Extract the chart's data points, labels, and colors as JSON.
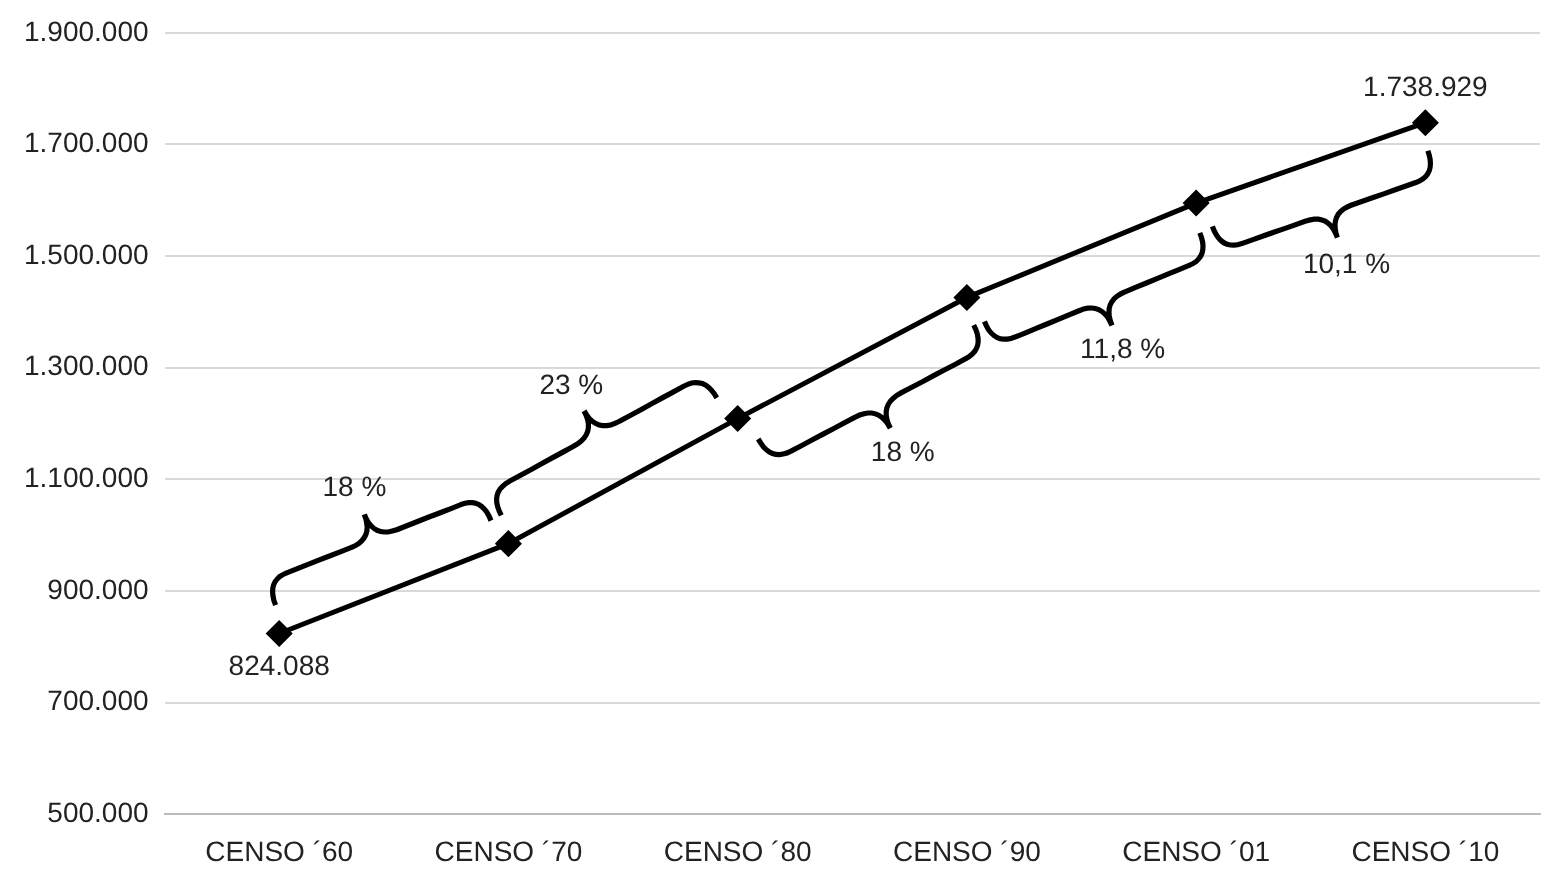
{
  "chart_data": {
    "type": "line",
    "categories": [
      "CENSO ´60",
      "CENSO ´70",
      "CENSO ´80",
      "CENSO ´90",
      "CENSO ´01",
      "CENSO ´10"
    ],
    "series": [
      {
        "color": "#000000",
        "values": [
          824088,
          985000,
          1209000,
          1426000,
          1595000,
          1738929
        ],
        "value_labels": [
          "824.088",
          null,
          null,
          null,
          null,
          "1.738.929"
        ]
      }
    ],
    "ylim": [
      500000,
      1900000
    ],
    "yticks": [
      {
        "value": 500000,
        "label": "500.000"
      },
      {
        "value": 700000,
        "label": "700.000"
      },
      {
        "value": 900000,
        "label": "900.000"
      },
      {
        "value": 1100000,
        "label": "1.100.000"
      },
      {
        "value": 1300000,
        "label": "1.300.000"
      },
      {
        "value": 1500000,
        "label": "1.500.000"
      },
      {
        "value": 1700000,
        "label": "1.700.000"
      },
      {
        "value": 1900000,
        "label": "1.900.000"
      }
    ],
    "grid": "y",
    "marker": "diamond",
    "line_style": "solid",
    "legend": false,
    "annotations": [
      "18 %",
      "23 %",
      "18 %",
      "11,8 %",
      "10,1 %"
    ]
  }
}
